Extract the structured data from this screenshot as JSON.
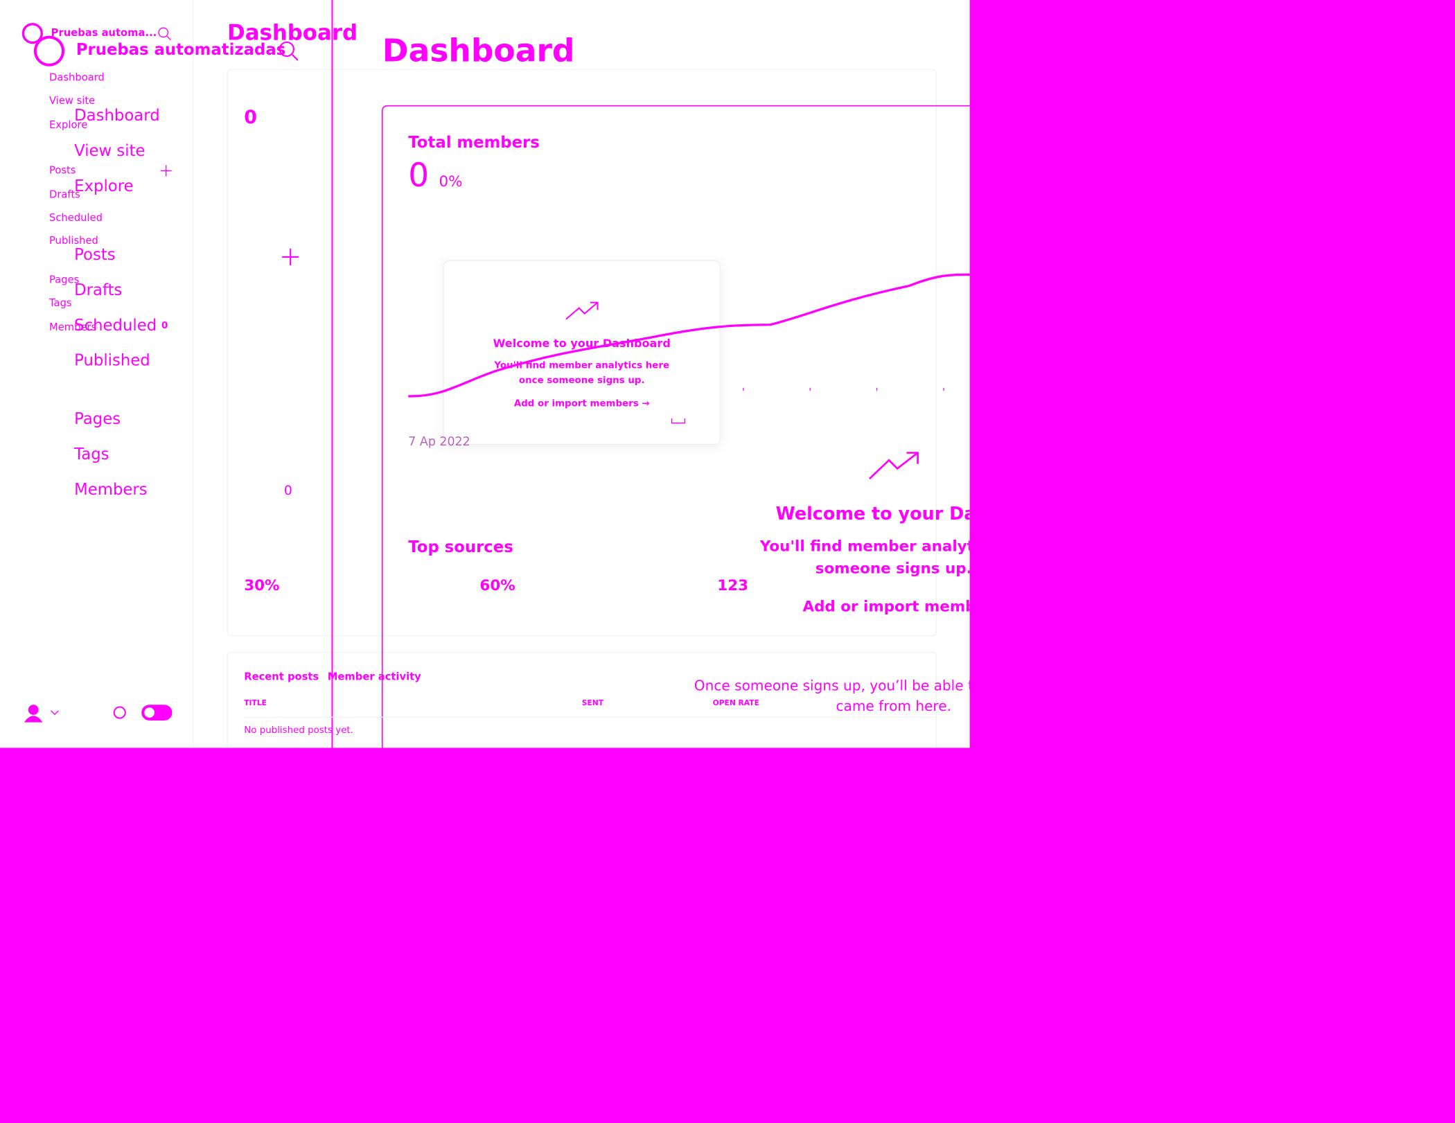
{
  "small": {
    "workspace": "Pruebas automa...",
    "title": "Dashboard",
    "nav": [
      "Dashboard",
      "View site",
      "Explore",
      "Posts",
      "Drafts",
      "Scheduled",
      "Published",
      "Pages",
      "Tags",
      "Members"
    ],
    "badge": "0",
    "stat": "0",
    "welcome": {
      "title": "Welcome to your Dashboard",
      "body": "You'll find member analytics here once someone signs up.",
      "link": "Add or import members →"
    },
    "metrics": [
      "30%",
      "60%",
      "123"
    ],
    "tabs": [
      "Recent posts",
      "Member activity"
    ],
    "columns": [
      "TITLE",
      "SENT",
      "OPEN RATE"
    ],
    "empty": "No published posts yet."
  },
  "large": {
    "workspace": "Pruebas automatizadas",
    "title": "Dashboard",
    "nav": [
      "Dashboard",
      "View site",
      "Explore",
      "Posts",
      "Drafts",
      "Scheduled",
      "Published",
      "Pages",
      "Tags",
      "Members"
    ],
    "badge": "0",
    "total_members": "Total members",
    "total_value": "0",
    "total_change": "0%",
    "date": "7 Ap   2022",
    "stat": "0",
    "top_sources": "Top sources",
    "welcome": {
      "title": "Welcome to your Dashb",
      "body": [
        "You'll find member analytics h",
        "someone signs up."
      ],
      "link": "Add or import members"
    },
    "note": [
      "Once someone signs up, you’ll be able t",
      "came from here."
    ]
  }
}
